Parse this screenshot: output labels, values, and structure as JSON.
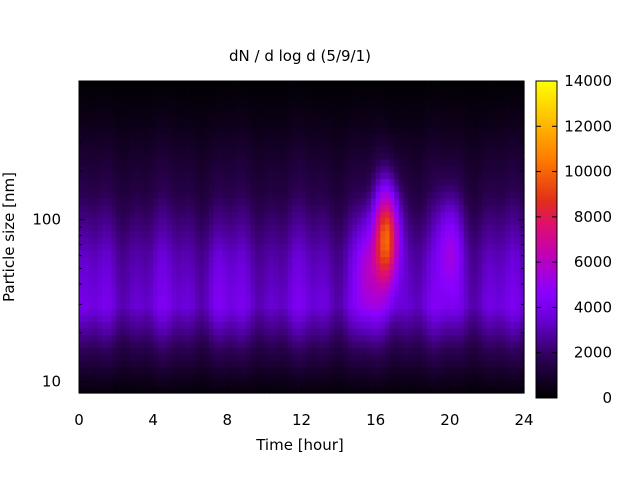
{
  "chart_data": {
    "type": "heatmap",
    "title": "dN / d log d (5/9/1)",
    "xlabel": "Time [hour]",
    "ylabel": "Particle size [nm]",
    "x_range": [
      0,
      24
    ],
    "x_ticks": [
      0,
      4,
      8,
      12,
      16,
      20,
      24
    ],
    "x_minor_tick_step": 1,
    "y_scale": "log",
    "y_range": [
      8.5,
      720
    ],
    "y_tick_labels": [
      10,
      100
    ],
    "colorbar": {
      "range": [
        0,
        14000
      ],
      "ticks": [
        0,
        2000,
        4000,
        6000,
        8000,
        10000,
        12000,
        14000
      ],
      "palette": [
        "#000000",
        "#8a00ff",
        "#e0007a",
        "#ff6a00",
        "#ffff00"
      ]
    },
    "data_description": {
      "background_level_by_size": [
        {
          "size_nm": 9,
          "dN_dlogd": 300
        },
        {
          "size_nm": 15,
          "dN_dlogd": 1500
        },
        {
          "size_nm": 30,
          "dN_dlogd": 3600
        },
        {
          "size_nm": 60,
          "dN_dlogd": 3000
        },
        {
          "size_nm": 150,
          "dN_dlogd": 1500
        },
        {
          "size_nm": 400,
          "dN_dlogd": 500
        },
        {
          "size_nm": 700,
          "dN_dlogd": 100
        }
      ],
      "events": [
        {
          "time_hour": 16.6,
          "peak_size_nm": 80,
          "peak_dN_dlogd": 10000
        },
        {
          "time_hour": 15.5,
          "peak_size_nm": 50,
          "peak_dN_dlogd": 5500
        },
        {
          "time_hour": 20.0,
          "peak_size_nm": 70,
          "peak_dN_dlogd": 5200
        },
        {
          "time_hour": 7.5,
          "peak_size_nm": 40,
          "peak_dN_dlogd": 3800
        }
      ]
    }
  }
}
